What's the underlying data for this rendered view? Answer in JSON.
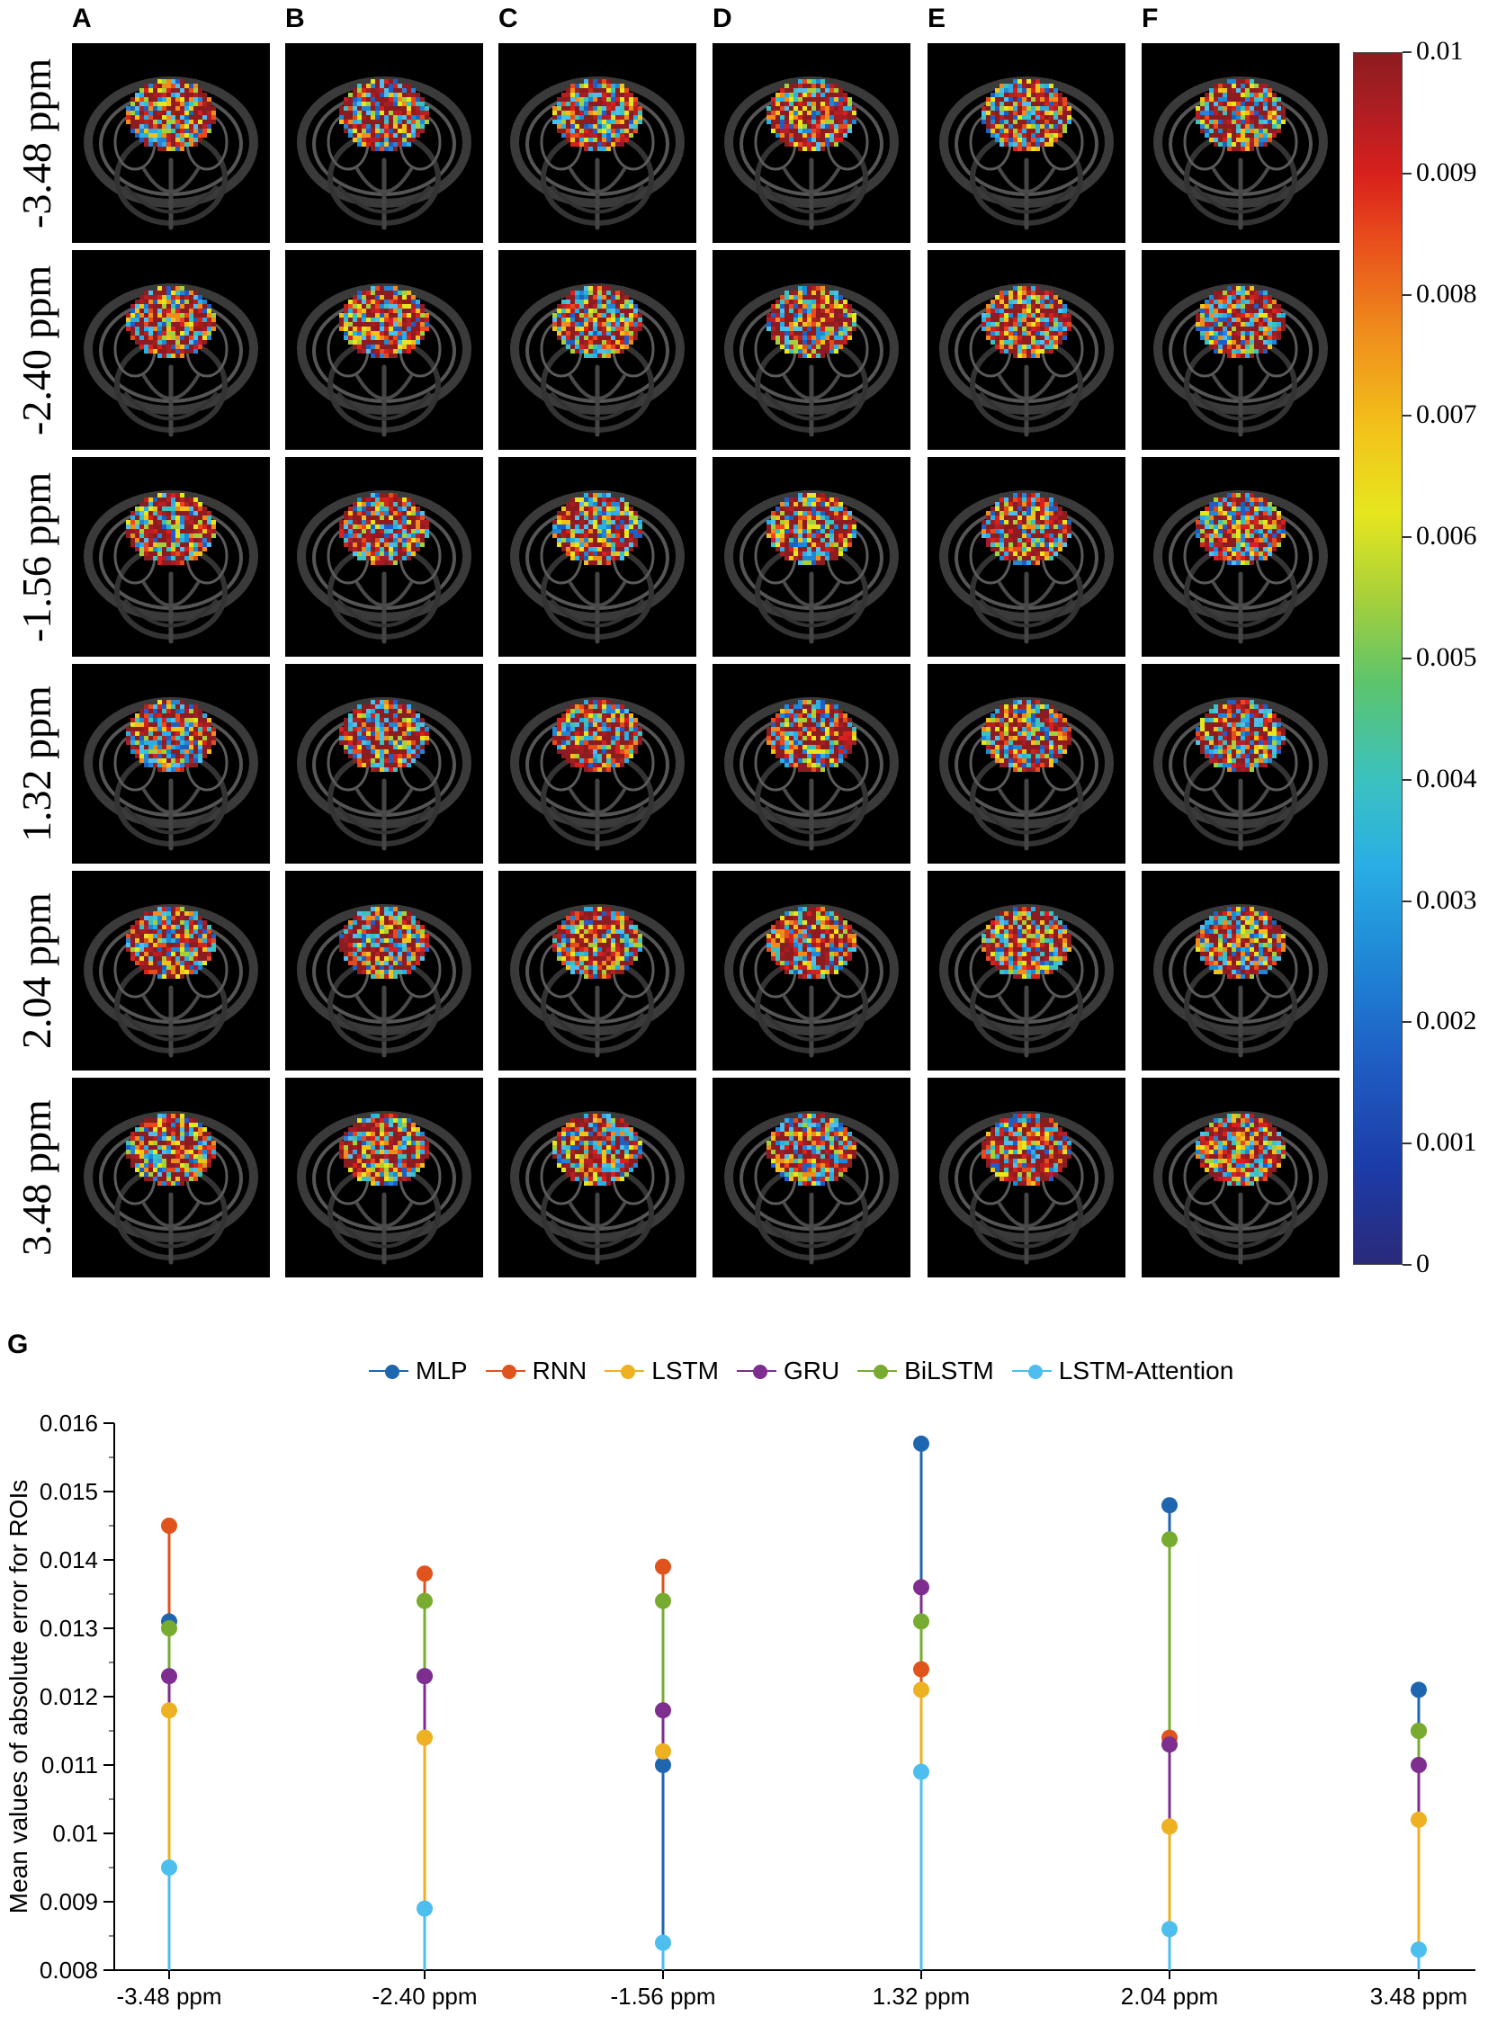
{
  "panels": {
    "column_letters": [
      "A",
      "B",
      "C",
      "D",
      "E",
      "F"
    ],
    "row_labels": [
      "-3.48 ppm",
      "-2.40 ppm",
      "-1.56 ppm",
      "1.32 ppm",
      "2.04 ppm",
      "3.48 ppm"
    ],
    "scatter_letter": "G"
  },
  "colorbar": {
    "min": 0,
    "max": 0.01,
    "ticks": [
      "0.01",
      "0.009",
      "0.008",
      "0.007",
      "0.006",
      "0.005",
      "0.004",
      "0.003",
      "0.002",
      "0.001",
      "0"
    ]
  },
  "colors": {
    "MLP": "#1f66b0",
    "RNN": "#e0531c",
    "LSTM": "#edb122",
    "GRU": "#7e2e8e",
    "BiLSTM": "#77ac30",
    "LSTM-Attention": "#4dbeee"
  },
  "chart_data": {
    "type": "scatter",
    "title": "",
    "xlabel": "",
    "ylabel": "Mean values of absolute error for ROIs",
    "categories": [
      "-3.48 ppm",
      "-2.40 ppm",
      "-1.56 ppm",
      "1.32 ppm",
      "2.04 ppm",
      "3.48 ppm"
    ],
    "ylim": [
      0.008,
      0.016
    ],
    "yticks": [
      "0.016",
      "0.015",
      "0.014",
      "0.013",
      "0.012",
      "0.011",
      "0.01",
      "0.009",
      "0.008"
    ],
    "ytick_values": [
      0.016,
      0.015,
      0.014,
      0.013,
      0.012,
      0.011,
      0.01,
      0.009,
      0.008
    ],
    "series": [
      {
        "name": "MLP",
        "values": [
          0.0131,
          0.0123,
          0.011,
          0.0157,
          0.0148,
          0.0121
        ]
      },
      {
        "name": "RNN",
        "values": [
          0.0145,
          0.0138,
          0.0139,
          0.0124,
          0.0114,
          0.0115
        ]
      },
      {
        "name": "LSTM",
        "values": [
          0.0118,
          0.0114,
          0.0112,
          0.0121,
          0.0101,
          0.0102
        ]
      },
      {
        "name": "GRU",
        "values": [
          0.0123,
          0.0123,
          0.0118,
          0.0136,
          0.0113,
          0.011
        ]
      },
      {
        "name": "BiLSTM",
        "values": [
          0.013,
          0.0134,
          0.0134,
          0.0131,
          0.0143,
          0.0115
        ]
      },
      {
        "name": "LSTM-Attention",
        "values": [
          0.0095,
          0.0089,
          0.0084,
          0.0109,
          0.0086,
          0.0083
        ]
      }
    ]
  }
}
